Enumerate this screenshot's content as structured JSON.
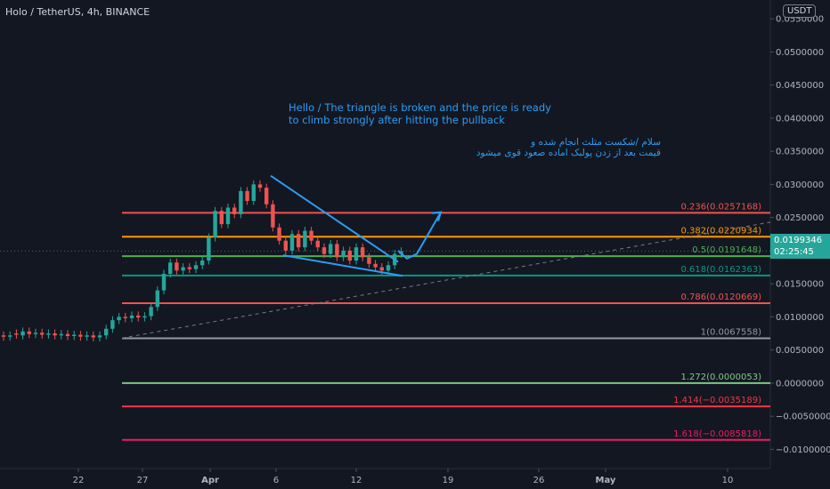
{
  "header": {
    "symbol_title": "Holo / TetherUS, 4h, BINANCE",
    "currency": "USDT"
  },
  "annotations": {
    "english_note": "Hello / The triangle is broken and the price is ready to climb strongly after hitting the pullback",
    "persian_note_line1": "سلام /شکست مثلث انجام شده و",
    "persian_note_line2": "قیمت بعد از زدن پولبک اماده صعود قوی میشود"
  },
  "last_price": {
    "value": "0.0199346",
    "countdown": "02:25:45",
    "color": "#26a69a"
  },
  "colors": {
    "background": "#131722",
    "up_candle": "#26a69a",
    "down_candle": "#ef5350",
    "drawing": "#2a9df4",
    "text": "#b2b5be"
  },
  "chart_data": {
    "type": "candlestick",
    "timeframe": "4h",
    "x_axis": {
      "tick_labels": [
        "22",
        "27",
        "Apr",
        "6",
        "12",
        "19",
        "26",
        "May",
        "10"
      ]
    },
    "y_axis": {
      "range": [
        -0.0125,
        0.0565
      ],
      "tick_labels": [
        "0.0550000",
        "0.0500000",
        "0.0450000",
        "0.0400000",
        "0.0350000",
        "0.0300000",
        "0.0250000",
        "0.0200000",
        "0.0150000",
        "0.0100000",
        "0.0050000",
        "0.0000000",
        "−0.0050000",
        "−0.0100000"
      ],
      "tick_values": [
        0.055,
        0.05,
        0.045,
        0.04,
        0.035,
        0.03,
        0.025,
        0.02,
        0.015,
        0.01,
        0.005,
        0.0,
        -0.005,
        -0.01
      ]
    },
    "fib_levels": [
      {
        "ratio": "0.236",
        "value": "0.0257168",
        "color": "#ef5350"
      },
      {
        "ratio": "0.382",
        "value": "0.0220934",
        "color": "#ff9800"
      },
      {
        "ratio": "0.5",
        "value": "0.0191648",
        "color": "#4caf50"
      },
      {
        "ratio": "0.618",
        "value": "0.0162363",
        "color": "#089981"
      },
      {
        "ratio": "0.786",
        "value": "0.0120669",
        "color": "#ef5350"
      },
      {
        "ratio": "1",
        "value": "0.0067558",
        "color": "#9598a1"
      },
      {
        "ratio": "1.272",
        "value": "0.0000053",
        "color": "#81c784"
      },
      {
        "ratio": "1.414",
        "value": "−0.0035189",
        "color": "#f23645"
      },
      {
        "ratio": "1.618",
        "value": "−0.0085818",
        "color": "#e91e63"
      }
    ],
    "price_path": [
      [
        0.0072,
        0.007
      ],
      [
        0.007,
        0.0072
      ],
      [
        0.0075,
        0.0073
      ],
      [
        0.0072,
        0.0078
      ],
      [
        0.0078,
        0.0074
      ],
      [
        0.0074,
        0.0076
      ],
      [
        0.0076,
        0.0073
      ],
      [
        0.0073,
        0.0075
      ],
      [
        0.0075,
        0.0072
      ],
      [
        0.0072,
        0.0074
      ],
      [
        0.0074,
        0.0071
      ],
      [
        0.0071,
        0.0073
      ],
      [
        0.0073,
        0.007
      ],
      [
        0.007,
        0.0072
      ],
      [
        0.0072,
        0.0069
      ],
      [
        0.0069,
        0.0072
      ],
      [
        0.0072,
        0.0082
      ],
      [
        0.0082,
        0.0095
      ],
      [
        0.0095,
        0.01
      ],
      [
        0.01,
        0.0098
      ],
      [
        0.0098,
        0.0102
      ],
      [
        0.0102,
        0.0099
      ],
      [
        0.0099,
        0.0101
      ],
      [
        0.0101,
        0.0115
      ],
      [
        0.0115,
        0.014
      ],
      [
        0.014,
        0.0165
      ],
      [
        0.0165,
        0.0182
      ],
      [
        0.0182,
        0.017
      ],
      [
        0.017,
        0.0175
      ],
      [
        0.0175,
        0.0172
      ],
      [
        0.0172,
        0.0178
      ],
      [
        0.0178,
        0.0185
      ],
      [
        0.0185,
        0.022
      ],
      [
        0.022,
        0.026
      ],
      [
        0.026,
        0.024
      ],
      [
        0.024,
        0.0265
      ],
      [
        0.0265,
        0.0255
      ],
      [
        0.0255,
        0.029
      ],
      [
        0.029,
        0.0275
      ],
      [
        0.0275,
        0.03
      ],
      [
        0.03,
        0.0295
      ],
      [
        0.0295,
        0.027
      ],
      [
        0.027,
        0.0235
      ],
      [
        0.0235,
        0.0215
      ],
      [
        0.0215,
        0.02
      ],
      [
        0.02,
        0.0225
      ],
      [
        0.0225,
        0.0205
      ],
      [
        0.0205,
        0.023
      ],
      [
        0.023,
        0.0215
      ],
      [
        0.0215,
        0.0205
      ],
      [
        0.0205,
        0.0195
      ],
      [
        0.0195,
        0.021
      ],
      [
        0.021,
        0.019
      ],
      [
        0.019,
        0.02
      ],
      [
        0.02,
        0.0185
      ],
      [
        0.0185,
        0.0205
      ],
      [
        0.0205,
        0.019
      ],
      [
        0.019,
        0.018
      ],
      [
        0.018,
        0.0175
      ],
      [
        0.0175,
        0.017
      ],
      [
        0.017,
        0.0178
      ],
      [
        0.0178,
        0.0195
      ],
      [
        0.0195,
        0.0199
      ]
    ],
    "drawings": {
      "triangle_upper": [
        [
          0.0313
        ],
        [
          0.0183
        ]
      ],
      "triangle_lower": [
        [
          0.0193
        ],
        [
          0.0162
        ]
      ],
      "trendline_from": 0.0068,
      "trendline_to": 0.0243,
      "projection_arrow": [
        0.0188,
        0.02,
        0.0195,
        0.0258
      ]
    }
  }
}
